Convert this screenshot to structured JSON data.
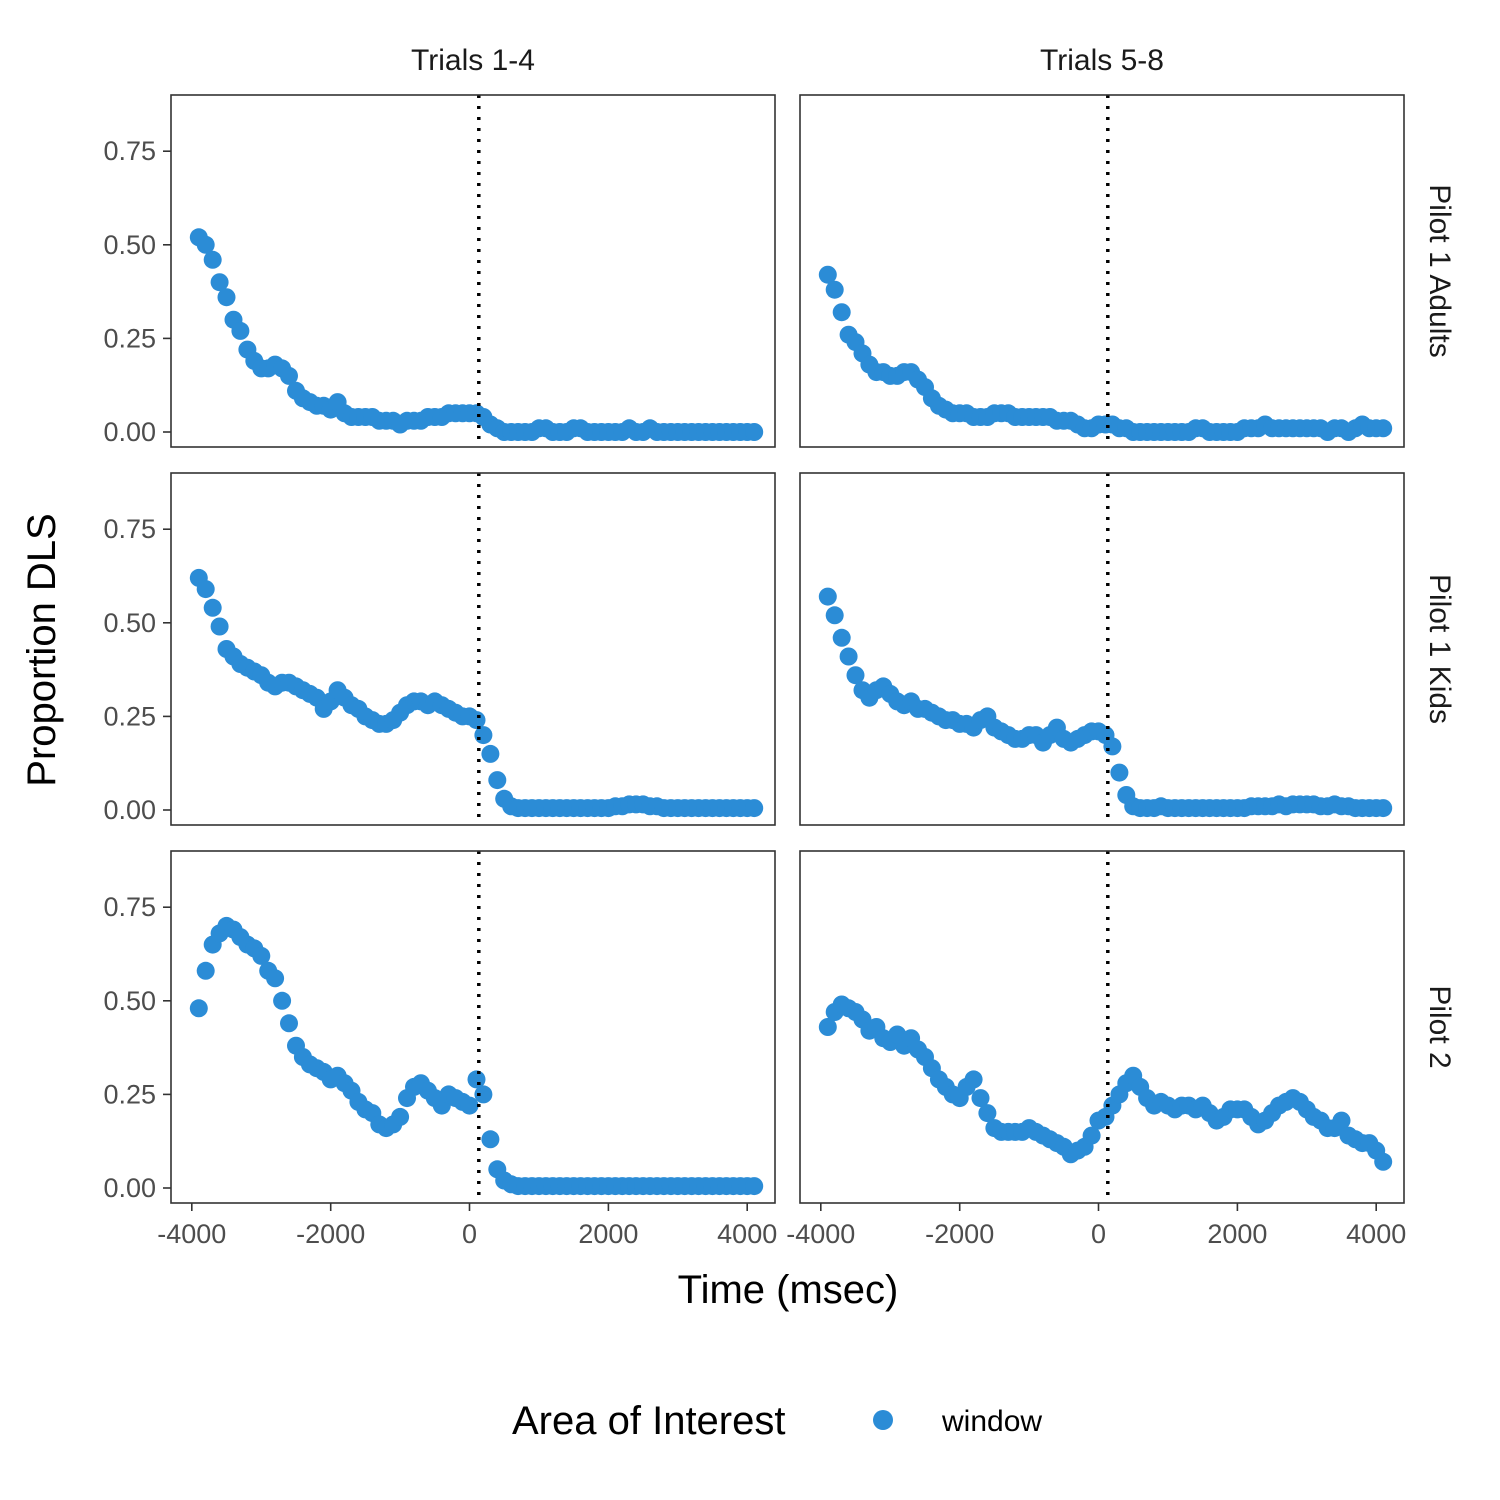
{
  "chart_data": {
    "type": "scatter",
    "xlabel": "Time (msec)",
    "ylabel": "Proportion DLS",
    "xlim": [
      -4300,
      4400
    ],
    "ylim": [
      -0.04,
      0.9
    ],
    "x_ticks": [
      -4000,
      -2000,
      0,
      2000,
      4000
    ],
    "x_tick_labels": [
      "-4000",
      "-2000",
      "0",
      "2000",
      "4000"
    ],
    "y_ticks": [
      0,
      0.25,
      0.5,
      0.75
    ],
    "y_tick_labels": [
      "0.00",
      "0.25",
      "0.50",
      "0.75"
    ],
    "vline_x": 133,
    "grid": false,
    "point_color": "#2b8cd6",
    "columns": [
      "Trials 1-4",
      "Trials 5-8"
    ],
    "rows": [
      "Pilot 1 Adults",
      "Pilot 1 Kids",
      "Pilot 2"
    ],
    "legend": {
      "title": "Area of Interest",
      "entries": [
        "window"
      ],
      "position": "bottom"
    },
    "panels": [
      {
        "row": "Pilot 1 Adults",
        "col": "Trials 1-4",
        "x": [
          -3900,
          -3800,
          -3700,
          -3600,
          -3500,
          -3400,
          -3300,
          -3200,
          -3100,
          -3000,
          -2900,
          -2800,
          -2700,
          -2600,
          -2500,
          -2400,
          -2300,
          -2200,
          -2100,
          -2000,
          -1900,
          -1800,
          -1700,
          -1600,
          -1500,
          -1400,
          -1300,
          -1200,
          -1100,
          -1000,
          -900,
          -800,
          -700,
          -600,
          -500,
          -400,
          -300,
          -200,
          -100,
          0,
          100,
          200,
          300,
          400,
          500,
          600,
          700,
          800,
          900,
          1000,
          1100,
          1200,
          1300,
          1400,
          1500,
          1600,
          1700,
          1800,
          1900,
          2000,
          2100,
          2200,
          2300,
          2400,
          2500,
          2600,
          2700,
          2800,
          2900,
          3000,
          3100,
          3200,
          3300,
          3400,
          3500,
          3600,
          3700,
          3800,
          3900,
          4000,
          4100
        ],
        "y": [
          0.52,
          0.5,
          0.46,
          0.4,
          0.36,
          0.3,
          0.27,
          0.22,
          0.19,
          0.17,
          0.17,
          0.18,
          0.17,
          0.15,
          0.11,
          0.09,
          0.08,
          0.07,
          0.07,
          0.06,
          0.08,
          0.05,
          0.04,
          0.04,
          0.04,
          0.04,
          0.03,
          0.03,
          0.03,
          0.02,
          0.03,
          0.03,
          0.03,
          0.04,
          0.04,
          0.04,
          0.05,
          0.05,
          0.05,
          0.05,
          0.05,
          0.04,
          0.02,
          0.01,
          0.0,
          0.0,
          0.0,
          0.0,
          0.0,
          0.01,
          0.01,
          0.0,
          0.0,
          0.0,
          0.01,
          0.01,
          0.0,
          0.0,
          0.0,
          0.0,
          0.0,
          0.0,
          0.01,
          0.0,
          0.0,
          0.01,
          0.0,
          0.0,
          0.0,
          0.0,
          0.0,
          0.0,
          0.0,
          0.0,
          0.0,
          0.0,
          0.0,
          0.0,
          0.0,
          0.0,
          0.0
        ]
      },
      {
        "row": "Pilot 1 Adults",
        "col": "Trials 5-8",
        "x": [
          -3900,
          -3800,
          -3700,
          -3600,
          -3500,
          -3400,
          -3300,
          -3200,
          -3100,
          -3000,
          -2900,
          -2800,
          -2700,
          -2600,
          -2500,
          -2400,
          -2300,
          -2200,
          -2100,
          -2000,
          -1900,
          -1800,
          -1700,
          -1600,
          -1500,
          -1400,
          -1300,
          -1200,
          -1100,
          -1000,
          -900,
          -800,
          -700,
          -600,
          -500,
          -400,
          -300,
          -200,
          -100,
          0,
          100,
          200,
          300,
          400,
          500,
          600,
          700,
          800,
          900,
          1000,
          1100,
          1200,
          1300,
          1400,
          1500,
          1600,
          1700,
          1800,
          1900,
          2000,
          2100,
          2200,
          2300,
          2400,
          2500,
          2600,
          2700,
          2800,
          2900,
          3000,
          3100,
          3200,
          3300,
          3400,
          3500,
          3600,
          3700,
          3800,
          3900,
          4000,
          4100
        ],
        "y": [
          0.42,
          0.38,
          0.32,
          0.26,
          0.24,
          0.21,
          0.18,
          0.16,
          0.16,
          0.15,
          0.15,
          0.16,
          0.16,
          0.14,
          0.12,
          0.09,
          0.07,
          0.06,
          0.05,
          0.05,
          0.05,
          0.04,
          0.04,
          0.04,
          0.05,
          0.05,
          0.05,
          0.04,
          0.04,
          0.04,
          0.04,
          0.04,
          0.04,
          0.03,
          0.03,
          0.03,
          0.02,
          0.01,
          0.01,
          0.02,
          0.02,
          0.02,
          0.01,
          0.01,
          0.0,
          0.0,
          0.0,
          0.0,
          0.0,
          0.0,
          0.0,
          0.0,
          0.0,
          0.01,
          0.01,
          0.0,
          0.0,
          0.0,
          0.0,
          0.0,
          0.01,
          0.01,
          0.01,
          0.02,
          0.01,
          0.01,
          0.01,
          0.01,
          0.01,
          0.01,
          0.01,
          0.01,
          0.0,
          0.01,
          0.01,
          0.0,
          0.01,
          0.02,
          0.01,
          0.01,
          0.01
        ]
      },
      {
        "row": "Pilot 1 Kids",
        "col": "Trials 1-4",
        "x": [
          -3900,
          -3800,
          -3700,
          -3600,
          -3500,
          -3400,
          -3300,
          -3200,
          -3100,
          -3000,
          -2900,
          -2800,
          -2700,
          -2600,
          -2500,
          -2400,
          -2300,
          -2200,
          -2100,
          -2000,
          -1900,
          -1800,
          -1700,
          -1600,
          -1500,
          -1400,
          -1300,
          -1200,
          -1100,
          -1000,
          -900,
          -800,
          -700,
          -600,
          -500,
          -400,
          -300,
          -200,
          -100,
          0,
          100,
          200,
          300,
          400,
          500,
          600,
          700,
          800,
          900,
          1000,
          1100,
          1200,
          1300,
          1400,
          1500,
          1600,
          1700,
          1800,
          1900,
          2000,
          2100,
          2200,
          2300,
          2400,
          2500,
          2600,
          2700,
          2800,
          2900,
          3000,
          3100,
          3200,
          3300,
          3400,
          3500,
          3600,
          3700,
          3800,
          3900,
          4000,
          4100
        ],
        "y": [
          0.62,
          0.59,
          0.54,
          0.49,
          0.43,
          0.41,
          0.39,
          0.38,
          0.37,
          0.36,
          0.34,
          0.33,
          0.34,
          0.34,
          0.33,
          0.32,
          0.31,
          0.3,
          0.27,
          0.29,
          0.32,
          0.3,
          0.28,
          0.27,
          0.25,
          0.24,
          0.23,
          0.23,
          0.24,
          0.26,
          0.28,
          0.29,
          0.29,
          0.28,
          0.29,
          0.28,
          0.27,
          0.26,
          0.25,
          0.25,
          0.24,
          0.2,
          0.15,
          0.08,
          0.03,
          0.01,
          0.005,
          0.005,
          0.005,
          0.005,
          0.005,
          0.005,
          0.005,
          0.005,
          0.005,
          0.005,
          0.005,
          0.005,
          0.005,
          0.005,
          0.01,
          0.01,
          0.015,
          0.015,
          0.015,
          0.01,
          0.01,
          0.005,
          0.005,
          0.005,
          0.005,
          0.005,
          0.005,
          0.005,
          0.005,
          0.005,
          0.005,
          0.005,
          0.005,
          0.005,
          0.005
        ]
      },
      {
        "row": "Pilot 1 Kids",
        "col": "Trials 5-8",
        "x": [
          -3900,
          -3800,
          -3700,
          -3600,
          -3500,
          -3400,
          -3300,
          -3200,
          -3100,
          -3000,
          -2900,
          -2800,
          -2700,
          -2600,
          -2500,
          -2400,
          -2300,
          -2200,
          -2100,
          -2000,
          -1900,
          -1800,
          -1700,
          -1600,
          -1500,
          -1400,
          -1300,
          -1200,
          -1100,
          -1000,
          -900,
          -800,
          -700,
          -600,
          -500,
          -400,
          -300,
          -200,
          -100,
          0,
          100,
          200,
          300,
          400,
          500,
          600,
          700,
          800,
          900,
          1000,
          1100,
          1200,
          1300,
          1400,
          1500,
          1600,
          1700,
          1800,
          1900,
          2000,
          2100,
          2200,
          2300,
          2400,
          2500,
          2600,
          2700,
          2800,
          2900,
          3000,
          3100,
          3200,
          3300,
          3400,
          3500,
          3600,
          3700,
          3800,
          3900,
          4000,
          4100
        ],
        "y": [
          0.57,
          0.52,
          0.46,
          0.41,
          0.36,
          0.32,
          0.3,
          0.32,
          0.33,
          0.31,
          0.29,
          0.28,
          0.29,
          0.27,
          0.27,
          0.26,
          0.25,
          0.24,
          0.24,
          0.23,
          0.23,
          0.22,
          0.24,
          0.25,
          0.22,
          0.21,
          0.2,
          0.19,
          0.19,
          0.2,
          0.2,
          0.18,
          0.2,
          0.22,
          0.19,
          0.18,
          0.19,
          0.2,
          0.21,
          0.21,
          0.2,
          0.17,
          0.1,
          0.04,
          0.01,
          0.005,
          0.005,
          0.005,
          0.01,
          0.005,
          0.005,
          0.005,
          0.005,
          0.005,
          0.005,
          0.005,
          0.005,
          0.005,
          0.005,
          0.005,
          0.005,
          0.01,
          0.01,
          0.01,
          0.01,
          0.015,
          0.01,
          0.015,
          0.015,
          0.015,
          0.015,
          0.01,
          0.01,
          0.015,
          0.01,
          0.01,
          0.005,
          0.005,
          0.005,
          0.005,
          0.005
        ]
      },
      {
        "row": "Pilot 2",
        "col": "Trials 1-4",
        "x": [
          -3900,
          -3800,
          -3700,
          -3600,
          -3500,
          -3400,
          -3300,
          -3200,
          -3100,
          -3000,
          -2900,
          -2800,
          -2700,
          -2600,
          -2500,
          -2400,
          -2300,
          -2200,
          -2100,
          -2000,
          -1900,
          -1800,
          -1700,
          -1600,
          -1500,
          -1400,
          -1300,
          -1200,
          -1100,
          -1000,
          -900,
          -800,
          -700,
          -600,
          -500,
          -400,
          -300,
          -200,
          -100,
          0,
          100,
          200,
          300,
          400,
          500,
          600,
          700,
          800,
          900,
          1000,
          1100,
          1200,
          1300,
          1400,
          1500,
          1600,
          1700,
          1800,
          1900,
          2000,
          2100,
          2200,
          2300,
          2400,
          2500,
          2600,
          2700,
          2800,
          2900,
          3000,
          3100,
          3200,
          3300,
          3400,
          3500,
          3600,
          3700,
          3800,
          3900,
          4000,
          4100
        ],
        "y": [
          0.48,
          0.58,
          0.65,
          0.68,
          0.7,
          0.69,
          0.67,
          0.65,
          0.64,
          0.62,
          0.58,
          0.56,
          0.5,
          0.44,
          0.38,
          0.35,
          0.33,
          0.32,
          0.31,
          0.29,
          0.3,
          0.28,
          0.26,
          0.23,
          0.21,
          0.2,
          0.17,
          0.16,
          0.17,
          0.19,
          0.24,
          0.27,
          0.28,
          0.26,
          0.24,
          0.22,
          0.25,
          0.24,
          0.23,
          0.22,
          0.29,
          0.25,
          0.13,
          0.05,
          0.02,
          0.01,
          0.005,
          0.005,
          0.005,
          0.005,
          0.005,
          0.005,
          0.005,
          0.005,
          0.005,
          0.005,
          0.005,
          0.005,
          0.005,
          0.005,
          0.005,
          0.005,
          0.005,
          0.005,
          0.005,
          0.005,
          0.005,
          0.005,
          0.005,
          0.005,
          0.005,
          0.005,
          0.005,
          0.005,
          0.005,
          0.005,
          0.005,
          0.005,
          0.005,
          0.005,
          0.005
        ]
      },
      {
        "row": "Pilot 2",
        "col": "Trials 5-8",
        "x": [
          -3900,
          -3800,
          -3700,
          -3600,
          -3500,
          -3400,
          -3300,
          -3200,
          -3100,
          -3000,
          -2900,
          -2800,
          -2700,
          -2600,
          -2500,
          -2400,
          -2300,
          -2200,
          -2100,
          -2000,
          -1900,
          -1800,
          -1700,
          -1600,
          -1500,
          -1400,
          -1300,
          -1200,
          -1100,
          -1000,
          -900,
          -800,
          -700,
          -600,
          -500,
          -400,
          -300,
          -200,
          -100,
          0,
          100,
          200,
          300,
          400,
          500,
          600,
          700,
          800,
          900,
          1000,
          1100,
          1200,
          1300,
          1400,
          1500,
          1600,
          1700,
          1800,
          1900,
          2000,
          2100,
          2200,
          2300,
          2400,
          2500,
          2600,
          2700,
          2800,
          2900,
          3000,
          3100,
          3200,
          3300,
          3400,
          3500,
          3600,
          3700,
          3800,
          3900,
          4000,
          4100
        ],
        "y": [
          0.43,
          0.47,
          0.49,
          0.48,
          0.47,
          0.45,
          0.42,
          0.43,
          0.4,
          0.39,
          0.41,
          0.38,
          0.4,
          0.37,
          0.35,
          0.32,
          0.29,
          0.27,
          0.25,
          0.24,
          0.27,
          0.29,
          0.24,
          0.2,
          0.16,
          0.15,
          0.15,
          0.15,
          0.15,
          0.16,
          0.15,
          0.14,
          0.13,
          0.12,
          0.11,
          0.09,
          0.1,
          0.11,
          0.14,
          0.18,
          0.19,
          0.22,
          0.25,
          0.28,
          0.3,
          0.27,
          0.24,
          0.22,
          0.23,
          0.22,
          0.21,
          0.22,
          0.22,
          0.21,
          0.22,
          0.2,
          0.18,
          0.19,
          0.21,
          0.21,
          0.21,
          0.19,
          0.17,
          0.18,
          0.2,
          0.22,
          0.23,
          0.24,
          0.23,
          0.21,
          0.19,
          0.18,
          0.16,
          0.16,
          0.18,
          0.14,
          0.13,
          0.12,
          0.12,
          0.1,
          0.07
        ]
      }
    ]
  }
}
